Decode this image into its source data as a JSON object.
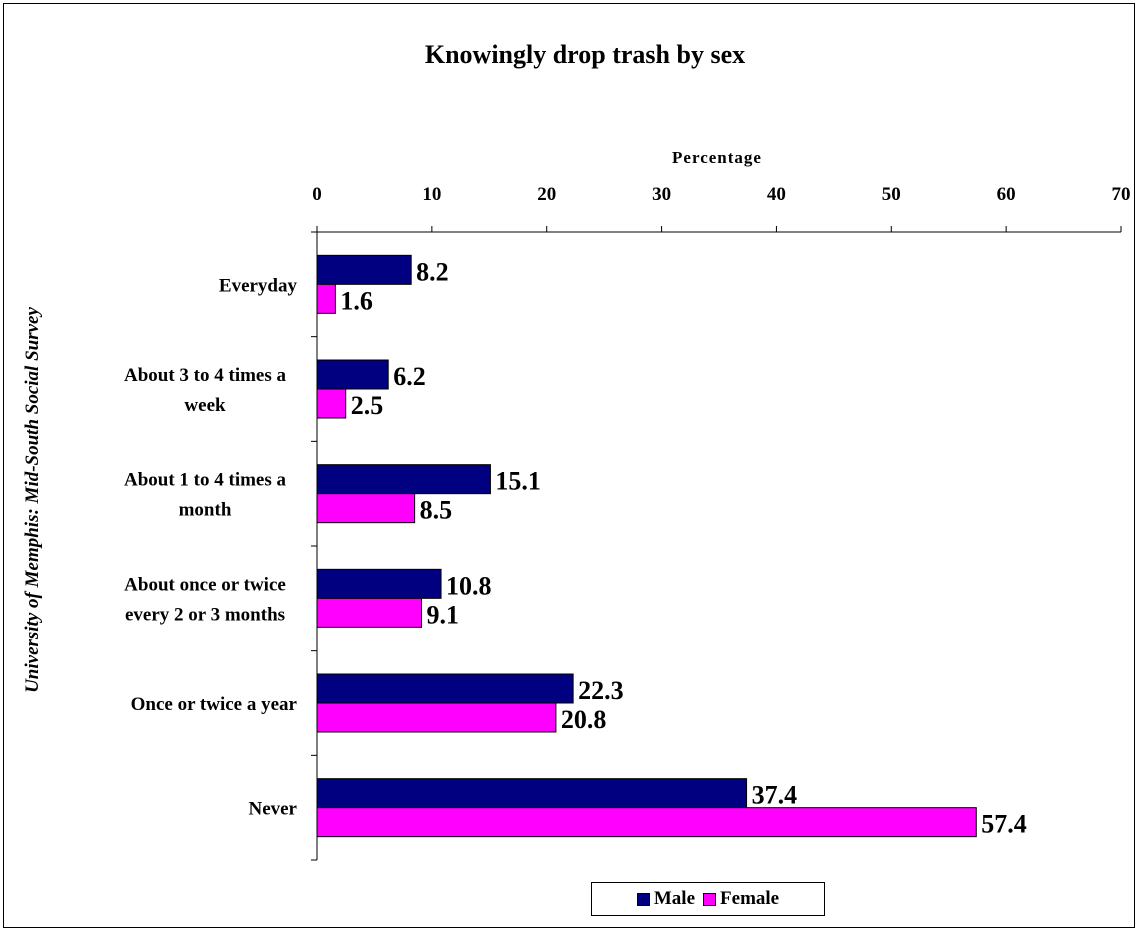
{
  "chart_data": {
    "type": "bar",
    "orientation": "horizontal",
    "title": "Knowingly drop trash by sex",
    "source_label": "University of Memphis: Mid-South Social Survey",
    "xlabel": "Percentage",
    "xlim": [
      0,
      70
    ],
    "xticks": [
      "0",
      "10",
      "20",
      "30",
      "40",
      "50",
      "60",
      "70"
    ],
    "categories": [
      [
        "Everyday"
      ],
      [
        "About 3 to 4 times a",
        "week"
      ],
      [
        "About 1 to 4 times a",
        "month"
      ],
      [
        "About once or twice",
        "every 2 or 3 months"
      ],
      [
        "Once or twice a year"
      ],
      [
        "Never"
      ]
    ],
    "series": [
      {
        "name": "Male",
        "color": "#000080",
        "values": [
          8.2,
          6.2,
          15.1,
          10.8,
          22.3,
          37.4
        ],
        "labels": [
          "8.2",
          "6.2",
          "15.1",
          "10.8",
          "22.3",
          "37.4"
        ]
      },
      {
        "name": "Female",
        "color": "#ff00ff",
        "values": [
          1.6,
          2.5,
          8.5,
          9.1,
          20.8,
          57.4
        ],
        "labels": [
          "1.6",
          "2.5",
          "8.5",
          "9.1",
          "20.8",
          "57.4"
        ]
      }
    ],
    "legend_position": "bottom",
    "grid": false
  }
}
